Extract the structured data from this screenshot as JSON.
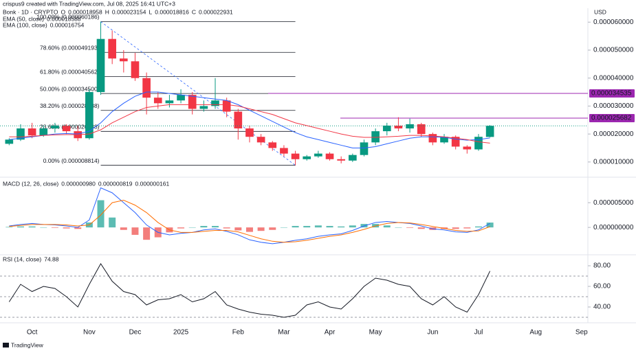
{
  "attribution": "crispus9 created with TradingView.com, Jul 08, 2025 16:41 UTC+3",
  "currency": "USD",
  "watermark": "TradingView",
  "chart_data": [
    {
      "type": "candlestick",
      "title": "Bonk · 1D · CRYPTO",
      "ohlc_header": [
        {
          "name": "O",
          "value": 1.8958e-05
        },
        {
          "name": "H",
          "value": 2.3154e-05
        },
        {
          "name": "L",
          "value": 1.8816e-05
        },
        {
          "name": "C",
          "value": 2.2931e-05
        }
      ],
      "categories": [
        null,
        null,
        "Oct",
        null,
        null,
        null,
        null,
        "Nov",
        null,
        null,
        null,
        "Dec",
        null,
        null,
        null,
        "2025",
        null,
        null,
        null,
        null,
        "Feb",
        null,
        null,
        null,
        "Mar",
        null,
        null,
        null,
        "Apr",
        null,
        null,
        null,
        "May",
        null,
        null,
        null,
        null,
        "Jun",
        null,
        null,
        null,
        "Jul",
        null,
        null,
        null,
        null,
        "Aug",
        null,
        null,
        null,
        "Sep"
      ],
      "up_color": "#089981",
      "down_color": "#f23645",
      "open": [
        1.65e-05,
        1.8e-05,
        2.2e-05,
        1.95e-05,
        2.2e-05,
        2.3e-05,
        2.1e-05,
        1.85e-05,
        3.5e-05,
        5.4e-05,
        4.7e-05,
        4.6e-05,
        4e-05,
        3.3e-05,
        3.1e-05,
        3.2e-05,
        3.4e-05,
        2.9e-05,
        3e-05,
        3.2e-05,
        2.8e-05,
        2.2e-05,
        1.9e-05,
        1.7e-05,
        1.5e-05,
        1.3e-05,
        1.1e-05,
        1.2e-05,
        1.3e-05,
        1.1e-05,
        1.05e-05,
        1.25e-05,
        1.7e-05,
        2.1e-05,
        2.3e-05,
        2.2e-05,
        2.35e-05,
        2e-05,
        1.7e-05,
        1.9e-05,
        1.55e-05,
        1.45e-05,
        1.8958e-05,
        null,
        null,
        null,
        null,
        null,
        null,
        null,
        null
      ],
      "high": [
        1.85e-05,
        2.35e-05,
        2.4e-05,
        2.3e-05,
        2.4e-05,
        2.35e-05,
        2.3e-05,
        3.6e-05,
        6.0186e-05,
        5.7e-05,
        5e-05,
        4.9e-05,
        4.2e-05,
        3.5e-05,
        3.4e-05,
        3.6e-05,
        3.5e-05,
        3.2e-05,
        4e-05,
        3.3e-05,
        2.9e-05,
        2.3e-05,
        2e-05,
        1.75e-05,
        1.6e-05,
        1.4e-05,
        1.25e-05,
        1.4e-05,
        1.35e-05,
        1.2e-05,
        1.3e-05,
        1.8e-05,
        2.2e-05,
        2.4e-05,
        2.6e-05,
        2.55e-05,
        2.4e-05,
        2.05e-05,
        2e-05,
        1.95e-05,
        1.6e-05,
        2e-05,
        2.3154e-05,
        null,
        null,
        null,
        null,
        null,
        null,
        null,
        null
      ],
      "low": [
        1.6e-05,
        1.75e-05,
        1.85e-05,
        1.9e-05,
        2.05e-05,
        2e-05,
        1.75e-05,
        1.8e-05,
        3.4e-05,
        4.5e-05,
        4.2e-05,
        3.9e-05,
        2.7e-05,
        2.9e-05,
        2.95e-05,
        3.1e-05,
        2.7e-05,
        2.8e-05,
        2.9e-05,
        2.6e-05,
        1.8e-05,
        1.7e-05,
        1.6e-05,
        1.4e-05,
        1.2e-05,
        8.814e-06,
        1.05e-05,
        1.15e-05,
        1.05e-05,
        9.5e-06,
        1e-05,
        1.2e-05,
        1.6e-05,
        1.95e-05,
        2.1e-05,
        2.05e-05,
        1.9e-05,
        1.6e-05,
        1.65e-05,
        1.45e-05,
        1.3e-05,
        1.4e-05,
        1.8816e-05,
        null,
        null,
        null,
        null,
        null,
        null,
        null,
        null
      ],
      "close": [
        1.8e-05,
        2.2e-05,
        1.95e-05,
        2.2e-05,
        2.3e-05,
        2.1e-05,
        1.85e-05,
        3.5e-05,
        5.4e-05,
        4.7e-05,
        4.6e-05,
        4e-05,
        3.3e-05,
        3.1e-05,
        3.2e-05,
        3.4e-05,
        2.9e-05,
        3e-05,
        3.2e-05,
        2.8e-05,
        2.2e-05,
        1.9e-05,
        1.7e-05,
        1.5e-05,
        1.3e-05,
        1.1e-05,
        1.2e-05,
        1.3e-05,
        1.1e-05,
        1.05e-05,
        1.25e-05,
        1.7e-05,
        2.1e-05,
        2.3e-05,
        2.2e-05,
        2.35e-05,
        2e-05,
        1.7e-05,
        1.9e-05,
        1.55e-05,
        1.45e-05,
        1.9e-05,
        2.2931e-05,
        null,
        null,
        null,
        null,
        null,
        null,
        null,
        null
      ],
      "series": [
        {
          "name": "EMA (50, close)",
          "color": "#2962ff",
          "values": [
            1.8e-05,
            1.85e-05,
            1.9e-05,
            1.95e-05,
            2e-05,
            2.02e-05,
            2e-05,
            2.1e-05,
            2.4e-05,
            2.8e-05,
            3.1e-05,
            3.35e-05,
            3.5e-05,
            3.5e-05,
            3.45e-05,
            3.4e-05,
            3.35e-05,
            3.3e-05,
            3.25e-05,
            3.2e-05,
            3.05e-05,
            2.85e-05,
            2.65e-05,
            2.45e-05,
            2.25e-05,
            2.05e-05,
            1.9e-05,
            1.8e-05,
            1.7e-05,
            1.6e-05,
            1.5e-05,
            1.5e-05,
            1.55e-05,
            1.65e-05,
            1.75e-05,
            1.85e-05,
            1.9e-05,
            1.9e-05,
            1.88e-05,
            1.82e-05,
            1.78e-05,
            1.8e-05,
            1.8588e-05,
            null,
            null,
            null,
            null,
            null,
            null,
            null,
            null
          ]
        },
        {
          "name": "EMA (100, close)",
          "color": "#f23645",
          "values": [
            1.9e-05,
            1.9e-05,
            1.92e-05,
            1.95e-05,
            1.97e-05,
            1.98e-05,
            1.98e-05,
            2e-05,
            2.15e-05,
            2.4e-05,
            2.6e-05,
            2.8e-05,
            2.95e-05,
            3e-05,
            3.05e-05,
            3.05e-05,
            3.05e-05,
            3.05e-05,
            3.05e-05,
            3.05e-05,
            3e-05,
            2.9e-05,
            2.8e-05,
            2.7e-05,
            2.55e-05,
            2.4e-05,
            2.3e-05,
            2.2e-05,
            2.1e-05,
            2e-05,
            1.92e-05,
            1.88e-05,
            1.88e-05,
            1.9e-05,
            1.92e-05,
            1.95e-05,
            1.95e-05,
            1.93e-05,
            1.9e-05,
            1.85e-05,
            1.8e-05,
            1.72e-05,
            1.6754e-05,
            null,
            null,
            null,
            null,
            null,
            null,
            null,
            null
          ]
        }
      ],
      "fib_levels": [
        {
          "label": "100.00% (0.000060186)",
          "value": 6.0186e-05
        },
        {
          "label": "78.60% (0.000049193)",
          "value": 4.9193e-05
        },
        {
          "label": "61.80% (0.000040562)",
          "value": 4.0562e-05
        },
        {
          "label": "50.00% (0.000034500)",
          "value": 3.45e-05
        },
        {
          "label": "38.20% (0.000028438)",
          "value": 2.8438e-05
        },
        {
          "label": "23.60% (0.000020938)",
          "value": 2.0938e-05
        },
        {
          "label": "0.00% (0.000008814)",
          "value": 8.814e-06
        }
      ],
      "price_lines": [
        {
          "value": 3.4535e-05,
          "color": "#9c27b0"
        },
        {
          "value": 2.5682e-05,
          "color": "#9c27b0"
        }
      ],
      "ylim": [
        5.3e-06,
        6.35e-05
      ],
      "yticks": [
        {
          "value": 1e-05,
          "label": "0.000010000"
        },
        {
          "value": 2e-05,
          "label": "0.000020000"
        },
        {
          "value": 3e-05,
          "label": "0.000030000"
        },
        {
          "value": 4e-05,
          "label": "0.000040000"
        },
        {
          "value": 5e-05,
          "label": "0.000050000"
        },
        {
          "value": 6e-05,
          "label": "0.000060000"
        }
      ]
    },
    {
      "type": "macd",
      "title": "MACD (12, 26, close)",
      "series": [
        {
          "color": "#26a69a",
          "negative_color": "#ef5350",
          "value_label": "0.000000980",
          "values": [
            1e-07,
            2e-07,
            2e-07,
            0,
            -1e-07,
            -2e-07,
            -3e-07,
            1e-06,
            5.5e-06,
            2e-06,
            -5e-07,
            -1.5e-06,
            -2.5e-06,
            -2e-06,
            -1e-06,
            -2e-07,
            0,
            3e-07,
            3e-07,
            -2e-07,
            -6e-07,
            -9e-07,
            -7e-07,
            -5e-07,
            0,
            3e-07,
            3e-07,
            4e-07,
            3e-07,
            2e-07,
            4e-07,
            7e-07,
            7e-07,
            4e-07,
            0,
            -1e-07,
            -3e-07,
            -5e-07,
            -3e-07,
            -3e-07,
            -2e-07,
            2e-07,
            9.8e-07,
            null,
            null,
            null,
            null,
            null,
            null,
            null,
            null
          ]
        },
        {
          "color": "#2962ff",
          "value_label": "0.000000819",
          "values": [
            3e-07,
            6e-07,
            8e-07,
            6e-07,
            5e-07,
            3e-07,
            0,
            1.5e-06,
            8e-06,
            7e-06,
            5e-06,
            3e-06,
            5e-07,
            -1e-06,
            -1.5e-06,
            -1.2e-06,
            -1e-06,
            -5e-07,
            -3e-07,
            -8e-07,
            -1.5e-06,
            -2.5e-06,
            -3e-06,
            -3.3e-06,
            -3e-06,
            -2.6e-06,
            -2.3e-06,
            -1.8e-06,
            -1.5e-06,
            -1.3e-06,
            -6e-07,
            3e-07,
            1e-06,
            1.2e-06,
            1e-06,
            8e-07,
            3e-07,
            -3e-07,
            -5e-07,
            -9e-07,
            -1e-06,
            -5e-07,
            8.19e-07,
            null,
            null,
            null,
            null,
            null,
            null,
            null,
            null
          ]
        },
        {
          "color": "#ff6d00",
          "value_label": "0.000000161",
          "values": [
            2e-07,
            4e-07,
            6e-07,
            6e-07,
            6e-07,
            5e-07,
            3e-07,
            5e-07,
            2.5e-06,
            5e-06,
            5.5e-06,
            4.5e-06,
            3e-06,
            1e-06,
            -5e-07,
            -1e-06,
            -1e-06,
            -8e-07,
            -6e-07,
            -6e-07,
            -9e-07,
            -1.6e-06,
            -2.3e-06,
            -2.8e-06,
            -3e-06,
            -2.9e-06,
            -2.6e-06,
            -2.2e-06,
            -1.8e-06,
            -1.5e-06,
            -1e-06,
            -4e-07,
            3e-07,
            8e-07,
            1e-06,
            9e-07,
            6e-07,
            2e-07,
            -2e-07,
            -6e-07,
            -8e-07,
            -7e-07,
            1.61e-07,
            null,
            null,
            null,
            null,
            null,
            null,
            null,
            null
          ]
        }
      ],
      "ylim": [
        -4.7e-06,
        9.6e-06
      ],
      "yticks": [
        {
          "value": 0,
          "label": "0.000000000"
        },
        {
          "value": 5e-06,
          "label": "0.000005000"
        }
      ]
    },
    {
      "type": "line",
      "title": "RSI (14, close)",
      "series": [
        {
          "color": "#131722",
          "values": [
            45,
            62,
            55,
            60,
            58,
            50,
            40,
            62,
            82,
            65,
            55,
            52,
            42,
            47,
            48,
            52,
            45,
            48,
            55,
            42,
            38,
            35,
            33,
            32,
            30,
            32,
            42,
            45,
            40,
            38,
            48,
            60,
            68,
            66,
            62,
            60,
            48,
            42,
            50,
            40,
            35,
            52,
            74.88,
            null,
            null,
            null,
            null,
            null,
            null,
            null,
            null
          ]
        }
      ],
      "bands": [
        70,
        50,
        30
      ],
      "ylim": [
        28,
        86
      ],
      "yticks": [
        {
          "value": 40,
          "label": "40.00"
        },
        {
          "value": 60,
          "label": "60.00"
        },
        {
          "value": 80,
          "label": "80.00"
        }
      ]
    }
  ]
}
